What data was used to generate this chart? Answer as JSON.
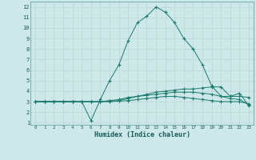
{
  "xlabel": "Humidex (Indice chaleur)",
  "bg_color": "#cce8e8",
  "grid_color": "#c0d8d8",
  "line_color": "#1a7a6e",
  "xlim": [
    -0.5,
    23.5
  ],
  "ylim": [
    0.8,
    12.5
  ],
  "xticks": [
    0,
    1,
    2,
    3,
    4,
    5,
    6,
    7,
    8,
    9,
    10,
    11,
    12,
    13,
    14,
    15,
    16,
    17,
    18,
    19,
    20,
    21,
    22,
    23
  ],
  "yticks": [
    1,
    2,
    3,
    4,
    5,
    6,
    7,
    8,
    9,
    10,
    11,
    12
  ],
  "line1_x": [
    0,
    1,
    2,
    3,
    4,
    5,
    6,
    7,
    8,
    9,
    10,
    11,
    12,
    13,
    14,
    15,
    16,
    17,
    18,
    19,
    20,
    21,
    22,
    23
  ],
  "line1_y": [
    3,
    3,
    3,
    3,
    3,
    3,
    1.2,
    3.2,
    5.0,
    6.5,
    8.8,
    10.5,
    11.1,
    12.0,
    11.5,
    10.5,
    9.0,
    8.0,
    6.5,
    4.5,
    3.5,
    3.5,
    3.8,
    2.6
  ],
  "line2_x": [
    0,
    1,
    2,
    3,
    4,
    5,
    6,
    7,
    8,
    9,
    10,
    11,
    12,
    13,
    14,
    15,
    16,
    17,
    18,
    19,
    20,
    21,
    22,
    23
  ],
  "line2_y": [
    3,
    3,
    3,
    3,
    3,
    3,
    3.0,
    3.0,
    3.1,
    3.2,
    3.4,
    3.5,
    3.7,
    3.9,
    4.0,
    4.1,
    4.2,
    4.2,
    4.3,
    4.4,
    4.4,
    3.5,
    3.5,
    3.4
  ],
  "line3_x": [
    0,
    1,
    2,
    3,
    4,
    5,
    6,
    7,
    8,
    9,
    10,
    11,
    12,
    13,
    14,
    15,
    16,
    17,
    18,
    19,
    20,
    21,
    22,
    23
  ],
  "line3_y": [
    3,
    3,
    3,
    3,
    3,
    3,
    3.0,
    3.0,
    3.05,
    3.1,
    3.3,
    3.5,
    3.6,
    3.7,
    3.8,
    3.9,
    3.9,
    3.9,
    3.8,
    3.7,
    3.5,
    3.3,
    3.2,
    2.7
  ],
  "line4_x": [
    0,
    1,
    2,
    3,
    4,
    5,
    6,
    7,
    8,
    9,
    10,
    11,
    12,
    13,
    14,
    15,
    16,
    17,
    18,
    19,
    20,
    21,
    22,
    23
  ],
  "line4_y": [
    3,
    3,
    3,
    3,
    3,
    3,
    3.0,
    3.0,
    3.0,
    3.05,
    3.1,
    3.2,
    3.3,
    3.4,
    3.5,
    3.5,
    3.4,
    3.3,
    3.2,
    3.1,
    3.0,
    3.0,
    3.0,
    2.8
  ]
}
